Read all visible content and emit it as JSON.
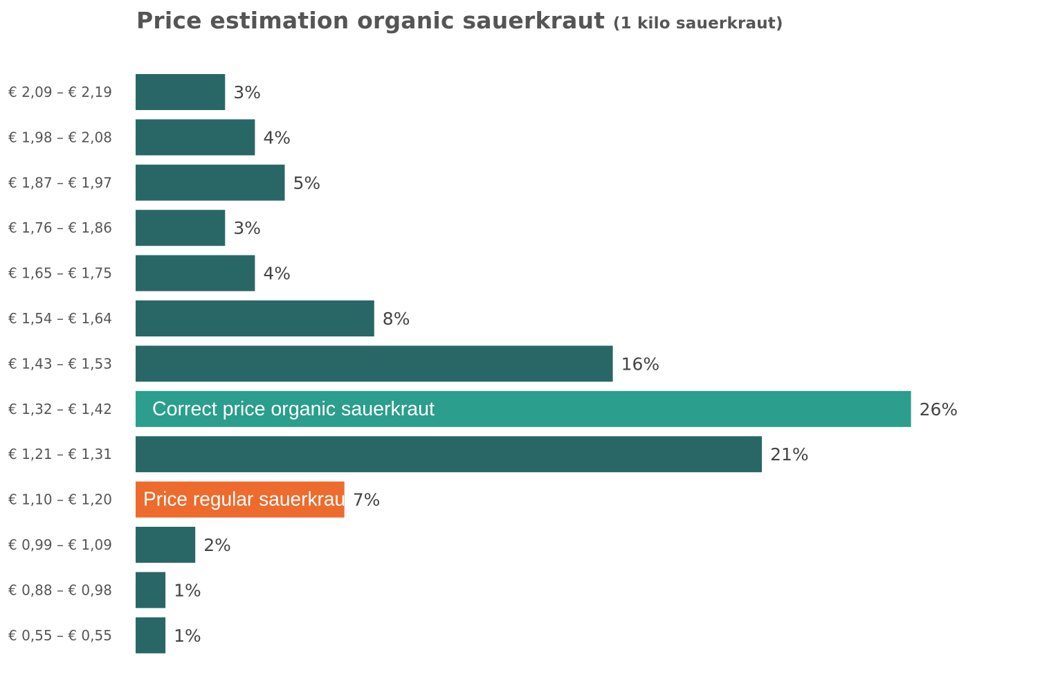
{
  "chart_data": {
    "type": "bar",
    "orientation": "horizontal",
    "title": "Price estimation organic sauerkraut",
    "subtitle": "(1 kilo sauerkraut)",
    "categories": [
      "€ 2,09 – € 2,19",
      "€ 1,98 – € 2,08",
      "€ 1,87 – € 1,97",
      "€ 1,76 – € 1,86",
      "€ 1,65 – € 1,75",
      "€ 1,54 – € 1,64",
      "€ 1,43 – € 1,53",
      "€ 1,32 – € 1,42",
      "€ 1,21 – € 1,31",
      "€ 1,10 – € 1,20",
      "€ 0,99 – € 1,09",
      "€ 0,88 – € 0,98",
      "€ 0,55 – € 0,55"
    ],
    "values": [
      3,
      4,
      5,
      3,
      4,
      8,
      16,
      26,
      21,
      7,
      2,
      1,
      1
    ],
    "value_labels": [
      "3%",
      "4%",
      "5%",
      "3%",
      "4%",
      "8%",
      "16%",
      "26%",
      "21%",
      "7%",
      "2%",
      "1%",
      "1%"
    ],
    "unit": "%",
    "bar_annotations": [
      {
        "category_index": 7,
        "text": "Correct price organic sauerkraut"
      },
      {
        "category_index": 9,
        "text": "Price regular sauerkraut"
      }
    ],
    "colors": {
      "default": "#296767",
      "correct_price": "#2b9e8d",
      "regular_price": "#ec6b2d"
    },
    "bar_color_keys": [
      "default",
      "default",
      "default",
      "default",
      "default",
      "default",
      "default",
      "correct_price",
      "default",
      "regular_price",
      "default",
      "default",
      "default"
    ],
    "grid": false,
    "legend": "none"
  }
}
